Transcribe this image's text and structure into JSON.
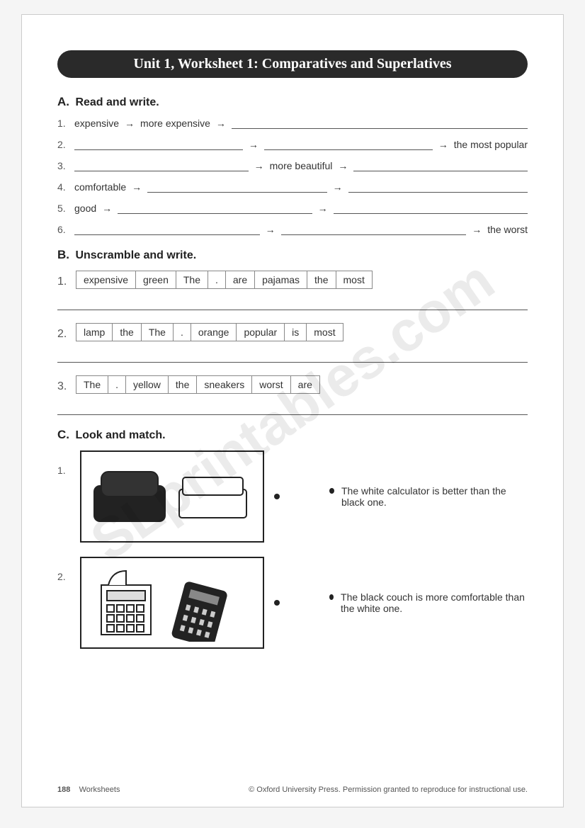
{
  "title": "Unit 1, Worksheet 1: Comparatives and Superlatives",
  "watermark": "SLprintables.com",
  "sectionA": {
    "heading_letter": "A.",
    "heading_text": "Read and write.",
    "rows": [
      {
        "n": "1.",
        "c1": "expensive",
        "c2": "more expensive",
        "c3": ""
      },
      {
        "n": "2.",
        "c1": "",
        "c2": "",
        "c3": "the most popular"
      },
      {
        "n": "3.",
        "c1": "",
        "c2": "more beautiful",
        "c3": ""
      },
      {
        "n": "4.",
        "c1": "comfortable",
        "c2": "",
        "c3": ""
      },
      {
        "n": "5.",
        "c1": "good",
        "c2": "",
        "c3": ""
      },
      {
        "n": "6.",
        "c1": "",
        "c2": "",
        "c3": "the worst"
      }
    ]
  },
  "sectionB": {
    "heading_letter": "B.",
    "heading_text": "Unscramble and write.",
    "items": [
      {
        "n": "1.",
        "words": [
          "expensive",
          "green",
          "The",
          ".",
          "are",
          "pajamas",
          "the",
          "most"
        ]
      },
      {
        "n": "2.",
        "words": [
          "lamp",
          "the",
          "The",
          ".",
          "orange",
          "popular",
          "is",
          "most"
        ]
      },
      {
        "n": "3.",
        "words": [
          "The",
          ".",
          "yellow",
          "the",
          "sneakers",
          "worst",
          "are"
        ]
      }
    ]
  },
  "sectionC": {
    "heading_letter": "C.",
    "heading_text": "Look and match.",
    "items": [
      {
        "n": "1.",
        "text": "The white calculator is better than the black one."
      },
      {
        "n": "2.",
        "text": "The black couch is more comfortable than the white one."
      }
    ]
  },
  "footer": {
    "page": "188",
    "label": "Worksheets",
    "copyright": "© Oxford University Press. Permission granted to reproduce for instructional use."
  }
}
